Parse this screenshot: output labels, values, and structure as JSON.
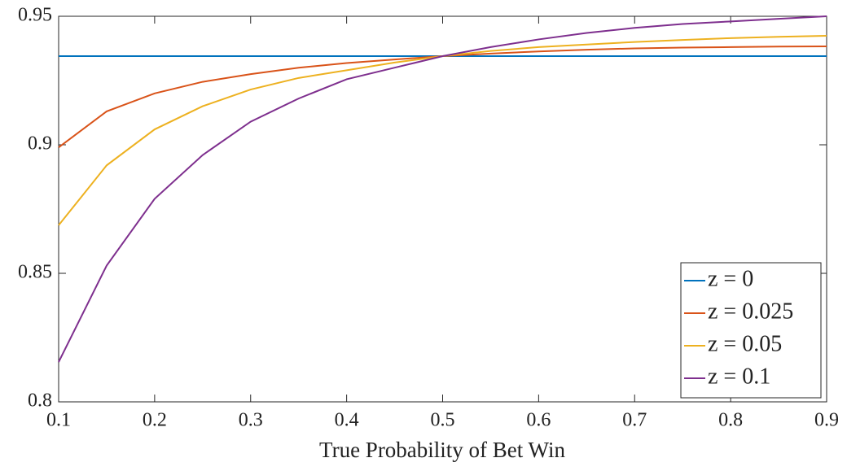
{
  "chart_data": {
    "type": "line",
    "x_label": "True Probability of Bet Win",
    "x": [
      0.1,
      0.15,
      0.2,
      0.25,
      0.3,
      0.35,
      0.4,
      0.45,
      0.5,
      0.55,
      0.6,
      0.65,
      0.7,
      0.75,
      0.8,
      0.85,
      0.9
    ],
    "series": [
      {
        "name": "z = 0",
        "color": "#0072BD",
        "values": [
          0.9345,
          0.9345,
          0.9345,
          0.9345,
          0.9345,
          0.9345,
          0.9345,
          0.9345,
          0.9345,
          0.9345,
          0.9345,
          0.9345,
          0.9345,
          0.9345,
          0.9345,
          0.9345,
          0.9345
        ]
      },
      {
        "name": "z = 0.025",
        "color": "#D95319",
        "values": [
          0.899,
          0.913,
          0.92,
          0.9245,
          0.9275,
          0.93,
          0.9318,
          0.9332,
          0.9345,
          0.9355,
          0.9363,
          0.937,
          0.9375,
          0.9378,
          0.938,
          0.9382,
          0.9383
        ]
      },
      {
        "name": "z = 0.05",
        "color": "#EDB120",
        "values": [
          0.8687,
          0.892,
          0.906,
          0.915,
          0.9215,
          0.926,
          0.929,
          0.932,
          0.9345,
          0.9365,
          0.938,
          0.939,
          0.94,
          0.9408,
          0.9415,
          0.942,
          0.9424
        ]
      },
      {
        "name": "z = 0.1",
        "color": "#7E2F8E",
        "values": [
          0.8155,
          0.853,
          0.879,
          0.896,
          0.909,
          0.918,
          0.9255,
          0.93,
          0.9345,
          0.938,
          0.941,
          0.9435,
          0.9455,
          0.947,
          0.948,
          0.949,
          0.95
        ]
      }
    ],
    "xlim": [
      0.1,
      0.9
    ],
    "xticks": [
      0.1,
      0.2,
      0.3,
      0.4,
      0.5,
      0.6,
      0.7,
      0.8,
      0.9
    ],
    "ylim": [
      0.8,
      0.95
    ],
    "yticks": [
      0.8,
      0.85,
      0.9,
      0.95
    ],
    "grid": false,
    "legend": "lower right"
  }
}
